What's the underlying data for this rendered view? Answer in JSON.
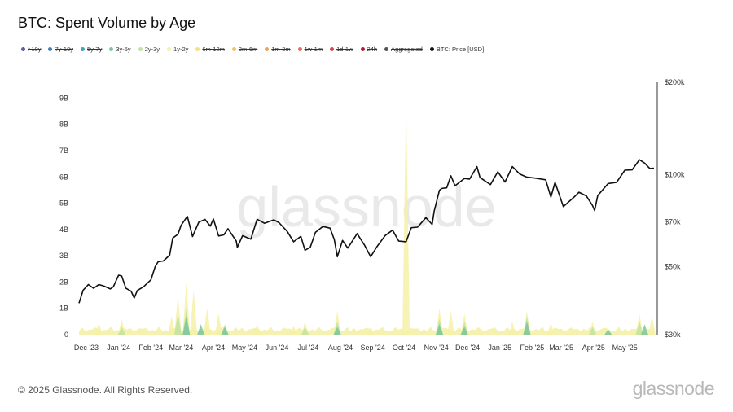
{
  "title": "BTC: Spent Volume by Age",
  "legend": [
    {
      "label": ">10y",
      "color": "#5b5ea6",
      "enabled": false
    },
    {
      "label": "7y-10y",
      "color": "#3d7fb5",
      "enabled": false
    },
    {
      "label": "5y-7y",
      "color": "#3aa6b9",
      "enabled": false
    },
    {
      "label": "3y-5y",
      "color": "#7cc69a",
      "enabled": true
    },
    {
      "label": "2y-3y",
      "color": "#bfe3a0",
      "enabled": true
    },
    {
      "label": "1y-2y",
      "color": "#f4f1a8",
      "enabled": true
    },
    {
      "label": "6m-12m",
      "color": "#f5e07a",
      "enabled": false
    },
    {
      "label": "3m-6m",
      "color": "#f3c463",
      "enabled": false
    },
    {
      "label": "1m-3m",
      "color": "#f0a05a",
      "enabled": false
    },
    {
      "label": "1w-1m",
      "color": "#e27257",
      "enabled": false
    },
    {
      "label": "1d-1w",
      "color": "#d04a4a",
      "enabled": false
    },
    {
      "label": "24h",
      "color": "#b01f3b",
      "enabled": false
    },
    {
      "label": "Aggregated",
      "color": "#555555",
      "enabled": false
    },
    {
      "label": "BTC: Price [USD]",
      "color": "#111111",
      "enabled": true
    }
  ],
  "watermark": "glassnode",
  "footer": {
    "copyright": "© 2025 Glassnode. All Rights Reserved.",
    "logo": "glassnode"
  },
  "chart_data": {
    "type": "area",
    "x_tick_labels": [
      "Dec '23",
      "Jan '24",
      "Feb '24",
      "Mar '24",
      "Apr '24",
      "May '24",
      "Jun '24",
      "Jul '24",
      "Aug '24",
      "Sep '24",
      "Oct '24",
      "Nov '24",
      "Dec '24",
      "Jan '25",
      "Feb '25",
      "Mar '25",
      "Apr '25",
      "May '25"
    ],
    "x_range": [
      "2023-12-01",
      "2025-06-05"
    ],
    "left_axis": {
      "ticks": [
        "0",
        "1B",
        "2B",
        "3B",
        "4B",
        "5B",
        "6B",
        "7B",
        "8B",
        "9B"
      ],
      "ylim": [
        0,
        9600000000
      ]
    },
    "right_axis": {
      "ticks": [
        "$30k",
        "$50k",
        "$70k",
        "$100k",
        "$200k"
      ],
      "scale": "log",
      "ylim": [
        30000,
        200000
      ]
    },
    "grid": false,
    "legend_position": "top-left",
    "series": [
      {
        "name": "BTC: Price [USD]",
        "axis": "right",
        "color": "#111111",
        "points": [
          [
            "2023-12-01",
            38000
          ],
          [
            "2023-12-05",
            41900
          ],
          [
            "2023-12-10",
            43700
          ],
          [
            "2023-12-15",
            42500
          ],
          [
            "2023-12-20",
            43700
          ],
          [
            "2023-12-25",
            43200
          ],
          [
            "2023-12-31",
            42300
          ],
          [
            "2024-01-03",
            43000
          ],
          [
            "2024-01-08",
            46900
          ],
          [
            "2024-01-11",
            46600
          ],
          [
            "2024-01-15",
            42500
          ],
          [
            "2024-01-20",
            41600
          ],
          [
            "2024-01-23",
            39500
          ],
          [
            "2024-01-26",
            41800
          ],
          [
            "2024-02-01",
            43000
          ],
          [
            "2024-02-08",
            45300
          ],
          [
            "2024-02-12",
            49900
          ],
          [
            "2024-02-15",
            51900
          ],
          [
            "2024-02-20",
            52200
          ],
          [
            "2024-02-26",
            54500
          ],
          [
            "2024-02-29",
            62000
          ],
          [
            "2024-03-05",
            63800
          ],
          [
            "2024-03-08",
            68200
          ],
          [
            "2024-03-14",
            73000
          ],
          [
            "2024-03-19",
            62700
          ],
          [
            "2024-03-25",
            69900
          ],
          [
            "2024-03-31",
            71300
          ],
          [
            "2024-04-05",
            67800
          ],
          [
            "2024-04-08",
            71600
          ],
          [
            "2024-04-13",
            63000
          ],
          [
            "2024-04-18",
            63500
          ],
          [
            "2024-04-22",
            66500
          ],
          [
            "2024-04-30",
            60600
          ],
          [
            "2024-05-01",
            57800
          ],
          [
            "2024-05-06",
            63100
          ],
          [
            "2024-05-14",
            61500
          ],
          [
            "2024-05-20",
            71400
          ],
          [
            "2024-05-27",
            69300
          ],
          [
            "2024-06-05",
            71100
          ],
          [
            "2024-06-10",
            69600
          ],
          [
            "2024-06-18",
            65100
          ],
          [
            "2024-06-24",
            60300
          ],
          [
            "2024-07-01",
            62800
          ],
          [
            "2024-07-05",
            56600
          ],
          [
            "2024-07-10",
            57800
          ],
          [
            "2024-07-15",
            64700
          ],
          [
            "2024-07-22",
            67600
          ],
          [
            "2024-07-29",
            66800
          ],
          [
            "2024-08-02",
            61400
          ],
          [
            "2024-08-05",
            53900
          ],
          [
            "2024-08-10",
            60900
          ],
          [
            "2024-08-15",
            57500
          ],
          [
            "2024-08-24",
            64100
          ],
          [
            "2024-08-31",
            58900
          ],
          [
            "2024-09-06",
            53900
          ],
          [
            "2024-09-12",
            58100
          ],
          [
            "2024-09-20",
            63200
          ],
          [
            "2024-09-27",
            65800
          ],
          [
            "2024-10-03",
            60600
          ],
          [
            "2024-10-10",
            60300
          ],
          [
            "2024-10-15",
            67000
          ],
          [
            "2024-10-21",
            67300
          ],
          [
            "2024-10-29",
            72300
          ],
          [
            "2024-11-04",
            68700
          ],
          [
            "2024-11-06",
            75900
          ],
          [
            "2024-11-11",
            88700
          ],
          [
            "2024-11-13",
            90000
          ],
          [
            "2024-11-18",
            90500
          ],
          [
            "2024-11-22",
            99000
          ],
          [
            "2024-11-26",
            91900
          ],
          [
            "2024-12-05",
            97000
          ],
          [
            "2024-12-10",
            96600
          ],
          [
            "2024-12-17",
            106100
          ],
          [
            "2024-12-20",
            97700
          ],
          [
            "2024-12-30",
            92700
          ],
          [
            "2025-01-06",
            102000
          ],
          [
            "2025-01-13",
            94500
          ],
          [
            "2025-01-20",
            106100
          ],
          [
            "2025-01-27",
            100400
          ],
          [
            "2025-02-03",
            98000
          ],
          [
            "2025-02-10",
            97400
          ],
          [
            "2025-02-21",
            96100
          ],
          [
            "2025-02-26",
            84400
          ],
          [
            "2025-03-02",
            94200
          ],
          [
            "2025-03-10",
            78500
          ],
          [
            "2025-03-20",
            84200
          ],
          [
            "2025-03-25",
            87500
          ],
          [
            "2025-04-01",
            85100
          ],
          [
            "2025-04-07",
            79200
          ],
          [
            "2025-04-09",
            76300
          ],
          [
            "2025-04-12",
            85300
          ],
          [
            "2025-04-22",
            93400
          ],
          [
            "2025-04-30",
            94200
          ],
          [
            "2025-05-08",
            103300
          ],
          [
            "2025-05-15",
            103500
          ],
          [
            "2025-05-22",
            111700
          ],
          [
            "2025-05-27",
            108900
          ],
          [
            "2025-06-01",
            104600
          ],
          [
            "2025-06-05",
            104800
          ]
        ]
      },
      {
        "name": "1y-2y",
        "axis": "left",
        "color": "#f4f1a8",
        "spikes": [
          [
            "2023-12-20",
            450000000
          ],
          [
            "2024-01-11",
            600000000
          ],
          [
            "2024-02-28",
            700000000
          ],
          [
            "2024-03-05",
            1500000000
          ],
          [
            "2024-03-13",
            2000000000
          ],
          [
            "2024-03-20",
            1700000000
          ],
          [
            "2024-04-02",
            1000000000
          ],
          [
            "2024-04-13",
            800000000
          ],
          [
            "2024-05-20",
            400000000
          ],
          [
            "2024-06-24",
            350000000
          ],
          [
            "2024-07-05",
            500000000
          ],
          [
            "2024-08-05",
            900000000
          ],
          [
            "2024-09-06",
            300000000
          ],
          [
            "2024-10-10",
            9000000000
          ],
          [
            "2024-11-11",
            1000000000
          ],
          [
            "2024-11-22",
            900000000
          ],
          [
            "2024-12-05",
            800000000
          ],
          [
            "2025-01-20",
            500000000
          ],
          [
            "2025-02-03",
            900000000
          ],
          [
            "2025-02-26",
            450000000
          ],
          [
            "2025-04-07",
            500000000
          ],
          [
            "2025-05-22",
            800000000
          ],
          [
            "2025-06-03",
            700000000
          ]
        ]
      },
      {
        "name": "2y-3y",
        "axis": "left",
        "color": "#bfe3a0",
        "spikes": [
          [
            "2024-01-11",
            300000000
          ],
          [
            "2024-03-05",
            800000000
          ],
          [
            "2024-03-13",
            1000000000
          ],
          [
            "2024-04-19",
            400000000
          ],
          [
            "2024-07-05",
            300000000
          ],
          [
            "2024-08-05",
            500000000
          ],
          [
            "2024-11-11",
            600000000
          ],
          [
            "2024-12-05",
            500000000
          ],
          [
            "2025-02-03",
            700000000
          ],
          [
            "2025-04-07",
            300000000
          ],
          [
            "2025-05-22",
            500000000
          ]
        ]
      },
      {
        "name": "3y-5y",
        "axis": "left",
        "color": "#7cc69a",
        "spikes": [
          [
            "2024-03-13",
            700000000
          ],
          [
            "2024-03-27",
            400000000
          ],
          [
            "2024-04-19",
            300000000
          ],
          [
            "2024-08-05",
            300000000
          ],
          [
            "2024-11-11",
            400000000
          ],
          [
            "2024-12-05",
            300000000
          ],
          [
            "2025-02-03",
            500000000
          ],
          [
            "2025-04-22",
            200000000
          ],
          [
            "2025-05-27",
            400000000
          ]
        ]
      }
    ]
  }
}
